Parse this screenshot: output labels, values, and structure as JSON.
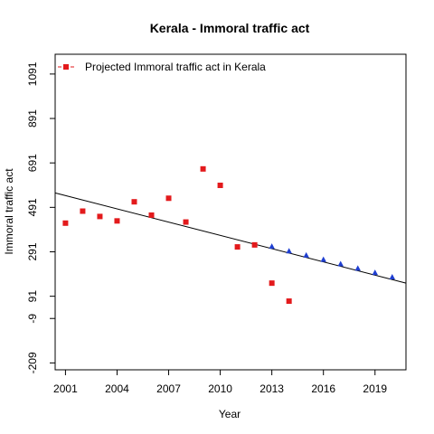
{
  "chart_data": {
    "type": "scatter",
    "title": "Kerala  -  Immoral traffic act",
    "xlabel": "Year",
    "ylabel": "Immoral traffic act",
    "xlim": [
      2000.4,
      2020.8
    ],
    "ylim": [
      -240,
      1180
    ],
    "x_ticks": [
      2001,
      2004,
      2007,
      2010,
      2013,
      2016,
      2019
    ],
    "y_ticks": [
      -209,
      -9,
      91,
      291,
      491,
      691,
      891,
      1091
    ],
    "legend": {
      "position": "top-left",
      "entries": [
        "Projected  Immoral traffic act  in  Kerala"
      ]
    },
    "colors": {
      "observed": "#e31a1c",
      "projected": "#1f3fd1",
      "trend": "#000000"
    },
    "series": [
      {
        "name": "Projected  Immoral traffic act  in  Kerala",
        "marker": "square",
        "x": [
          2001,
          2002,
          2003,
          2004,
          2005,
          2006,
          2007,
          2008,
          2009,
          2010,
          2011,
          2012,
          2013,
          2014
        ],
        "y": [
          420,
          474,
          450,
          430,
          516,
          456,
          532,
          425,
          664,
          590,
          313,
          322,
          150,
          69
        ]
      },
      {
        "marker": "triangle",
        "x": [
          2013,
          2014,
          2015,
          2016,
          2017,
          2018,
          2019,
          2020
        ],
        "y": [
          315,
          294,
          275,
          256,
          236,
          216,
          197,
          177
        ]
      }
    ],
    "trend_line": {
      "x": [
        2000.4,
        2020.8
      ],
      "y": [
        556,
        150
      ]
    }
  }
}
